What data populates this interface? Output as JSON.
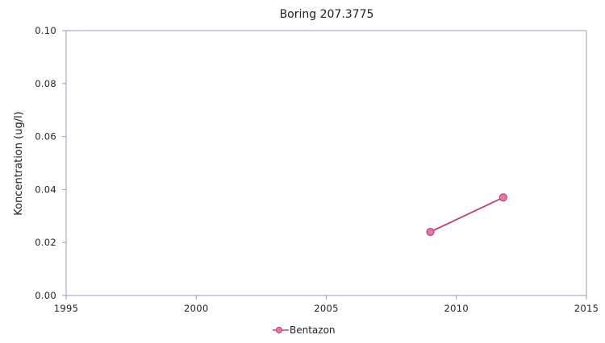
{
  "chart_data": {
    "type": "line",
    "title": "Boring 207.3775",
    "xlabel": "",
    "ylabel": "Koncentration (ug/l)",
    "xlim": [
      1995,
      2015
    ],
    "ylim": [
      0,
      0.1
    ],
    "x_ticks": [
      "1995",
      "2000",
      "2005",
      "2010",
      "2015"
    ],
    "y_ticks": [
      "0.00",
      "0.02",
      "0.04",
      "0.06",
      "0.08",
      "0.10"
    ],
    "grid": false,
    "legend_position": "bottom-center",
    "series": [
      {
        "name": "Bentazon",
        "color": "#c0407a",
        "marker_color": "#e07aa8",
        "x": [
          2009.0,
          2011.8
        ],
        "y": [
          0.024,
          0.037
        ]
      }
    ]
  }
}
